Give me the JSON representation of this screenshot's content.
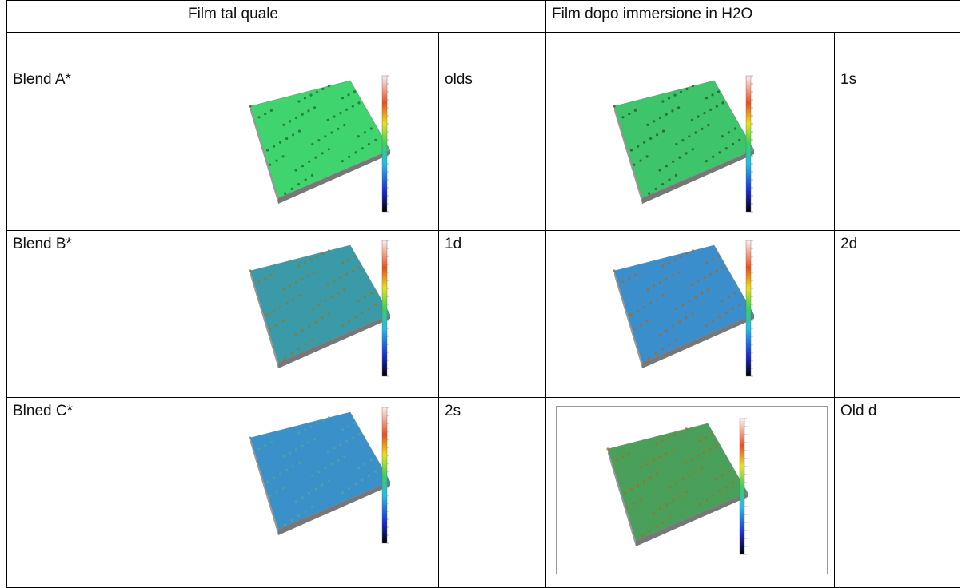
{
  "table": {
    "header": {
      "col1": "Film tal quale",
      "col2": "Film dopo immersione in H2O"
    },
    "rows": [
      {
        "label": "Blend A*",
        "code1": "olds",
        "code2": "1s"
      },
      {
        "label": "Blend B*",
        "code1": "1d",
        "code2": "2d"
      },
      {
        "label": "Blned C*",
        "code1": "2s",
        "code2": "Old d"
      }
    ]
  }
}
